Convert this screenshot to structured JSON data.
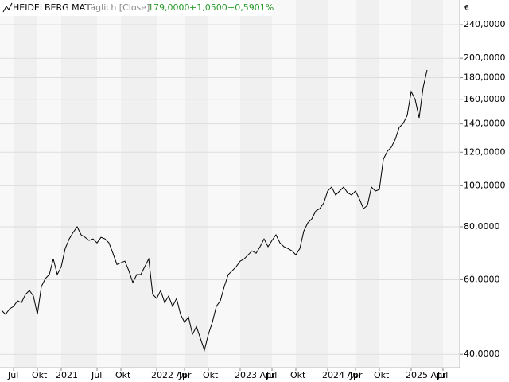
{
  "header": {
    "name": "HEIDELBERG MAT",
    "mode": "Täglich [Close]",
    "price": "179,0000",
    "change": "+1,0500",
    "change_pct": "+0,5901%"
  },
  "chart_data": {
    "type": "line",
    "currency": "€",
    "log_y": true,
    "grid": true,
    "color": "#000000",
    "categories": [
      null,
      null,
      null,
      "Jul",
      null,
      null,
      null,
      null,
      null,
      "Okt",
      null,
      null,
      null,
      null,
      null,
      "2021",
      null,
      null,
      null,
      null,
      null,
      null,
      null,
      null,
      "Jul",
      null,
      null,
      null,
      null,
      null,
      "Okt",
      null,
      null,
      null,
      null,
      null,
      null,
      null,
      null,
      "2022 Apr",
      null,
      null,
      null,
      null,
      null,
      null,
      "Jul",
      null,
      null,
      null,
      null,
      null,
      "Okt",
      null,
      null,
      null,
      null,
      null,
      null,
      null,
      "2023 Apr",
      null,
      null,
      null,
      null,
      null,
      null,
      null,
      "Jul",
      null,
      null,
      null,
      null,
      null,
      "Okt",
      null,
      null,
      null,
      null,
      null,
      null,
      null,
      "2024 Apr",
      null,
      null,
      null,
      null,
      null,
      null,
      "Jul",
      null,
      null,
      null,
      null,
      null,
      "Okt",
      null,
      null,
      null,
      null,
      null,
      null,
      null,
      "2025 Apr",
      null,
      null,
      null,
      null,
      null,
      null,
      null,
      "Jul"
    ],
    "values": [
      50.8,
      49.7,
      51.2,
      51.9,
      53.5,
      53.0,
      55.4,
      56.6,
      54.9,
      49.7,
      57.8,
      60.4,
      61.7,
      67.2,
      61.7,
      64.4,
      71.1,
      74.9,
      77.6,
      80.0,
      76.6,
      75.6,
      74.3,
      74.9,
      73.3,
      75.6,
      74.9,
      73.3,
      69.3,
      65.2,
      65.8,
      66.4,
      63.0,
      59.1,
      61.7,
      61.7,
      64.4,
      67.2,
      55.4,
      54.2,
      56.6,
      53.0,
      54.9,
      51.9,
      54.2,
      49.7,
      47.6,
      49.0,
      44.6,
      46.5,
      43.6,
      40.9,
      44.6,
      47.6,
      51.9,
      53.5,
      57.8,
      61.7,
      63.0,
      64.4,
      66.4,
      67.2,
      68.7,
      70.2,
      69.3,
      71.8,
      74.9,
      71.8,
      74.3,
      76.6,
      73.3,
      71.8,
      71.1,
      70.2,
      68.7,
      71.1,
      78.2,
      81.7,
      83.5,
      87.2,
      88.3,
      91.0,
      97.2,
      99.3,
      95.1,
      97.2,
      99.3,
      96.3,
      95.1,
      97.2,
      93.0,
      88.3,
      89.9,
      99.3,
      97.2,
      98.0,
      115.5,
      120.6,
      123.3,
      128.7,
      137.4,
      140.4,
      146.6,
      166.9,
      159.8,
      144.7,
      170.6,
      187.6,
      null,
      null,
      null,
      null
    ],
    "ylim": [
      37.2,
      274.5
    ],
    "yticks": [
      {
        "value": 40,
        "label": "40,0000"
      },
      {
        "value": 60,
        "label": "60,0000"
      },
      {
        "value": 80,
        "label": "80,0000"
      },
      {
        "value": 100,
        "label": "100,0000"
      },
      {
        "value": 120,
        "label": "120,0000"
      },
      {
        "value": 140,
        "label": "140,0000"
      },
      {
        "value": 160,
        "label": "160,0000"
      },
      {
        "value": 180,
        "label": "180,0000"
      },
      {
        "value": 200,
        "label": "200,0000"
      },
      {
        "value": 240,
        "label": "240,0000"
      }
    ]
  }
}
